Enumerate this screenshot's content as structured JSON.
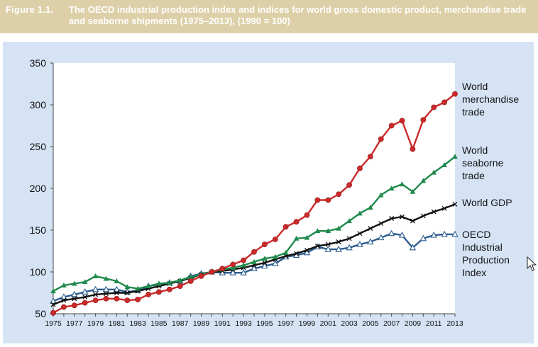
{
  "figure": {
    "number": "Figure 1.1.",
    "title": "The OECD industrial production index and indices for world gross domestic product, merchandise trade and seaborne shipments (1975–2013), (1990 = 100)"
  },
  "colors": {
    "header_bg": "#ddd0a8",
    "panel_bg": "#d5e3f5",
    "merchandise": "#cc2a2a",
    "seaborne": "#1f8a4c",
    "gdp": "#111111",
    "oecd": "#2c5d8f"
  },
  "icons": {
    "cursor": "mouse-pointer-icon"
  },
  "chart_data": {
    "type": "line",
    "title": "",
    "xlabel": "",
    "ylabel": "",
    "ylim": [
      50,
      350
    ],
    "yticks": [
      50,
      100,
      150,
      200,
      250,
      300,
      350
    ],
    "xlim": [
      1975,
      2013
    ],
    "xticks": [
      "1975",
      "1977",
      "1979",
      "1981",
      "1983",
      "1985",
      "1987",
      "1989",
      "1991",
      "1993",
      "1995",
      "1997",
      "1999",
      "2001",
      "2003",
      "2005",
      "2007",
      "2009",
      "2011",
      "2013"
    ],
    "grid": false,
    "legend": "right, labels beside line ends",
    "x": [
      1975,
      1976,
      1977,
      1978,
      1979,
      1980,
      1981,
      1982,
      1983,
      1984,
      1985,
      1986,
      1987,
      1988,
      1989,
      1990,
      1991,
      1992,
      1993,
      1994,
      1995,
      1996,
      1997,
      1998,
      1999,
      2000,
      2001,
      2002,
      2003,
      2004,
      2005,
      2006,
      2007,
      2008,
      2009,
      2010,
      2011,
      2012,
      2013
    ],
    "series": [
      {
        "name": "World merchandise trade",
        "label_lines": [
          "World",
          "merchandise",
          "trade"
        ],
        "color": "#cc2a2a",
        "marker": "circle",
        "values": [
          51,
          58,
          60,
          63,
          66,
          68,
          68,
          66,
          67,
          73,
          76,
          79,
          83,
          89,
          95,
          100,
          104,
          109,
          114,
          124,
          133,
          139,
          154,
          160,
          168,
          186,
          186,
          193,
          204,
          224,
          238,
          259,
          275,
          281,
          247,
          282,
          297,
          303,
          313
        ]
      },
      {
        "name": "World seaborne trade",
        "label_lines": [
          "World",
          "seaborne",
          "trade"
        ],
        "color": "#1f8a4c",
        "marker": "triangle",
        "values": [
          77,
          84,
          86,
          88,
          95,
          92,
          89,
          82,
          80,
          83,
          86,
          87,
          90,
          94,
          97,
          100,
          103,
          105,
          108,
          112,
          116,
          118,
          123,
          140,
          141,
          149,
          149,
          152,
          161,
          170,
          177,
          192,
          200,
          205,
          196,
          209,
          219,
          228,
          238
        ]
      },
      {
        "name": "World GDP",
        "label_lines": [
          "World GDP"
        ],
        "color": "#111111",
        "marker": "x",
        "values": [
          61,
          66,
          68,
          70,
          73,
          74,
          75,
          75,
          77,
          80,
          83,
          86,
          89,
          93,
          97,
          100,
          101,
          103,
          105,
          108,
          111,
          115,
          119,
          122,
          126,
          131,
          133,
          136,
          140,
          146,
          152,
          158,
          164,
          166,
          161,
          167,
          172,
          176,
          181
        ]
      },
      {
        "name": "OECD Industrial Production Index",
        "label_lines": [
          "OECD",
          "Industrial",
          "Production",
          "Index"
        ],
        "color": "#2c5d8f",
        "marker": "open-triangle",
        "values": [
          65,
          70,
          73,
          76,
          79,
          79,
          79,
          76,
          78,
          83,
          85,
          87,
          89,
          95,
          98,
          100,
          99,
          99,
          99,
          104,
          107,
          110,
          118,
          120,
          123,
          130,
          127,
          127,
          129,
          133,
          136,
          141,
          146,
          144,
          129,
          140,
          144,
          145,
          145
        ]
      }
    ]
  }
}
